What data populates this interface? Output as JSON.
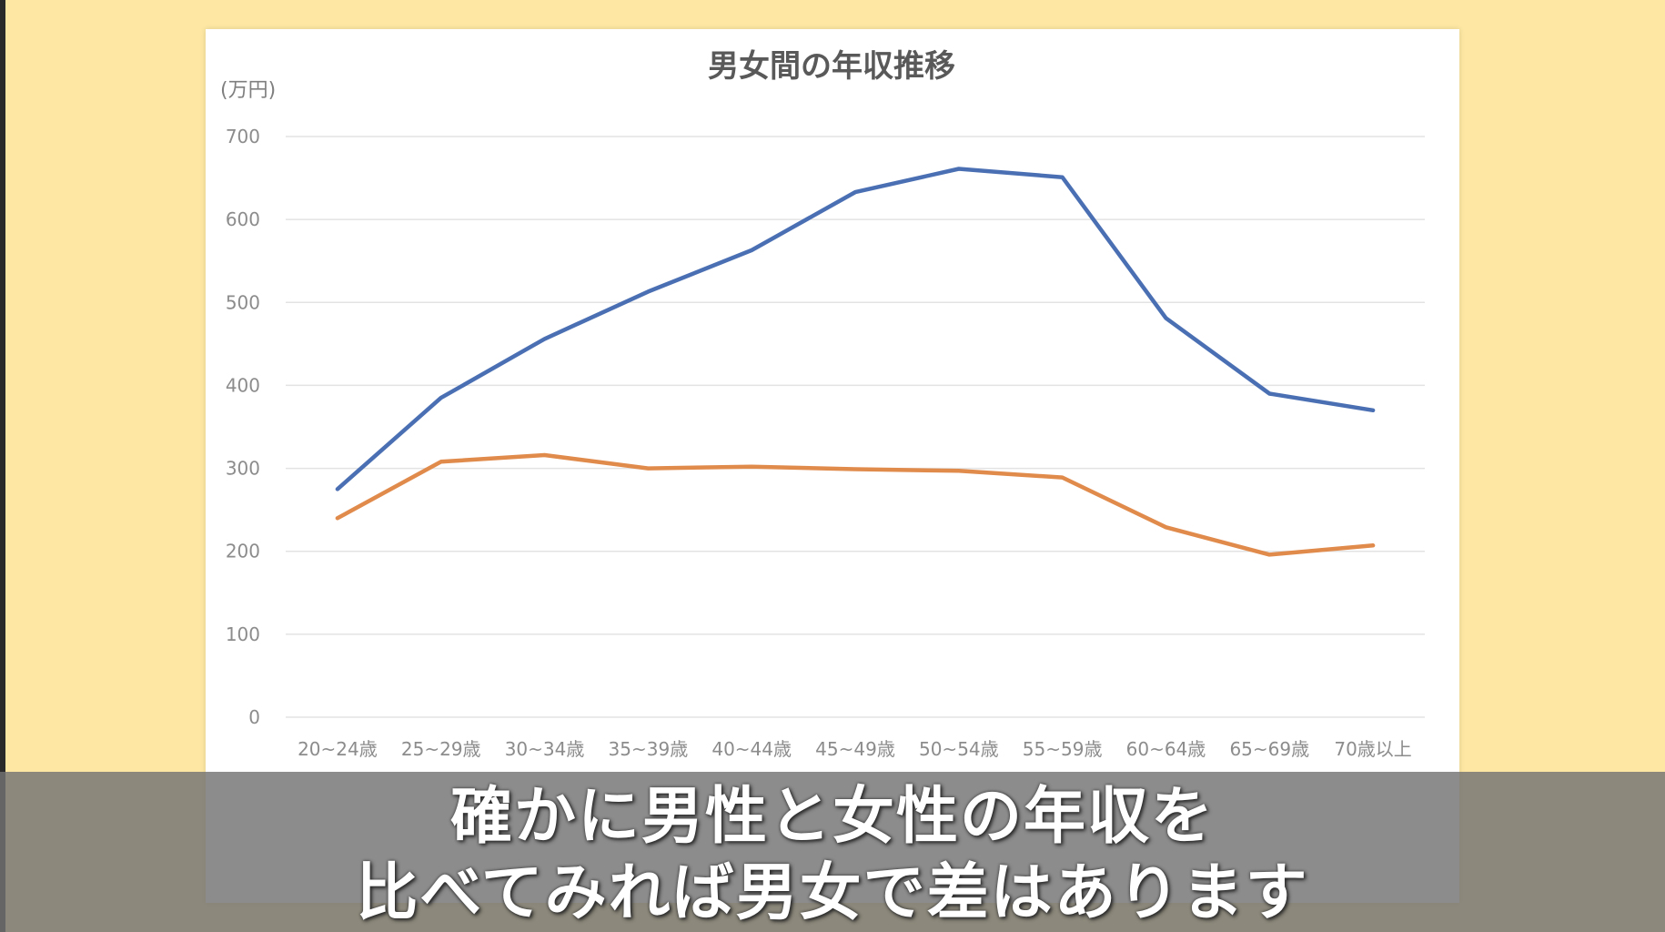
{
  "chart_data": {
    "type": "line",
    "title": "男女間の年収推移",
    "ylabel": "(万円)",
    "xlabel": "",
    "ylim": [
      0,
      700
    ],
    "yticks": [
      0,
      100,
      200,
      300,
      400,
      500,
      600,
      700
    ],
    "grid": true,
    "categories": [
      "20~24歳",
      "25~29歳",
      "30~34歳",
      "35~39歳",
      "40~44歳",
      "45~49歳",
      "50~54歳",
      "55~59歳",
      "60~64歳",
      "65~69歳",
      "70歳以上"
    ],
    "series": [
      {
        "values": [
          275,
          385,
          456,
          513,
          563,
          633,
          661,
          651,
          481,
          390,
          370
        ],
        "color": "#4a6fb3"
      },
      {
        "values": [
          240,
          308,
          316,
          300,
          302,
          299,
          297,
          289,
          229,
          196,
          207
        ],
        "color": "#e08a4c"
      }
    ]
  },
  "colors": {
    "background": "#fde7a3",
    "card": "#ffffff",
    "grid": "#e3e3e3"
  },
  "caption": {
    "line1": "確かに男性と女性の年収を",
    "line2": "比べてみれば男女で差はあります"
  }
}
